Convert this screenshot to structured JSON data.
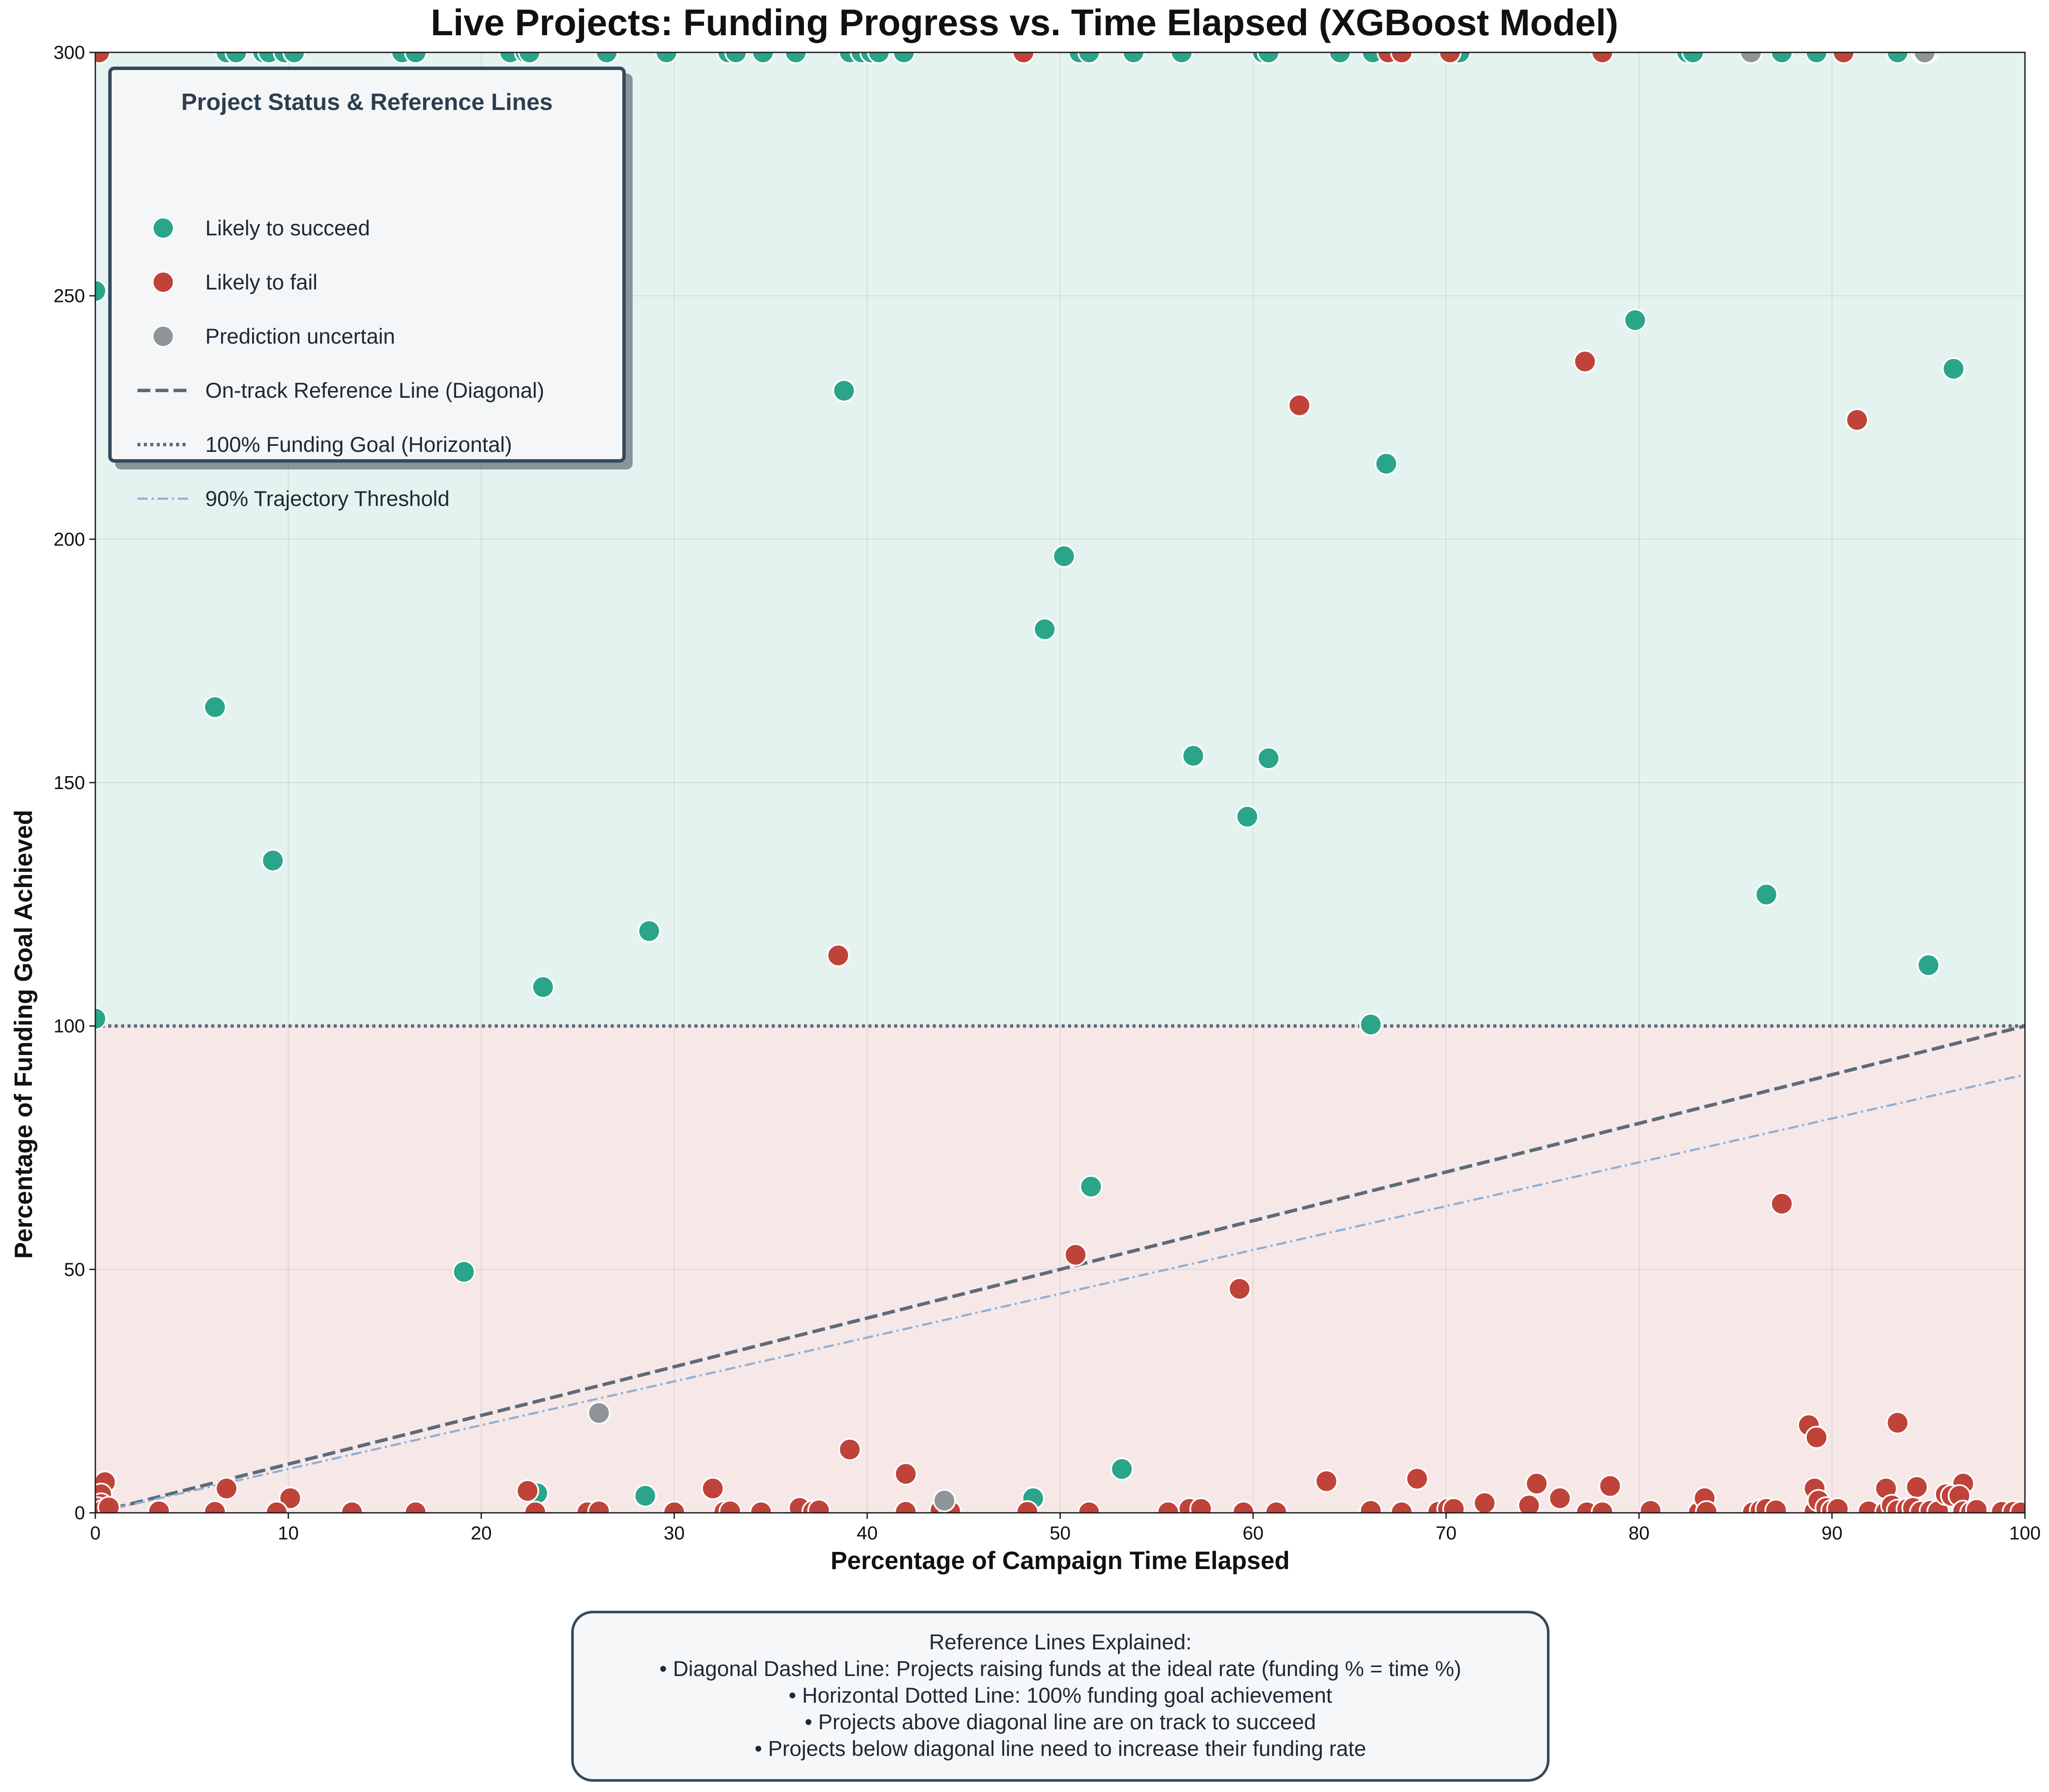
{
  "chart_data": {
    "type": "scatter",
    "title": "Live Projects: Funding Progress vs. Time Elapsed (XGBoost Model)",
    "xlabel": "Percentage of Campaign Time Elapsed",
    "ylabel": "Percentage of Funding Goal Achieved",
    "xlim": [
      0,
      100
    ],
    "ylim": [
      0,
      300
    ],
    "xticks": [
      "0",
      "10",
      "20",
      "30",
      "40",
      "50",
      "60",
      "70",
      "80",
      "90",
      "100"
    ],
    "yticks": [
      "0",
      "50",
      "100",
      "150",
      "200",
      "250",
      "300"
    ],
    "grid": true,
    "regions": [
      {
        "from": 100,
        "to": 300,
        "color": "#e5f3f0"
      },
      {
        "from": 0,
        "to": 100,
        "color": "#f6e8e7"
      }
    ],
    "reference_lines": [
      {
        "name": "On-track Reference Line (Diagonal)",
        "style": "dashed",
        "color": "#5d6b7a",
        "points": [
          [
            0,
            0
          ],
          [
            100,
            100
          ]
        ]
      },
      {
        "name": "100% Funding Goal (Horizontal)",
        "style": "dotted",
        "color": "#5d6b7a",
        "points": [
          [
            0,
            100
          ],
          [
            100,
            100
          ]
        ]
      },
      {
        "name": "90% Trajectory Threshold",
        "style": "dashdot",
        "color": "#8fb0d6",
        "points": [
          [
            0,
            0
          ],
          [
            100,
            90
          ]
        ]
      }
    ],
    "series": [
      {
        "name": "Likely to succeed",
        "color": "#2aa58a",
        "points": [
          [
            0,
            251
          ],
          [
            0,
            101.5
          ],
          [
            6.2,
            165.5
          ],
          [
            9.2,
            134
          ],
          [
            19.1,
            49.5
          ],
          [
            23.2,
            108
          ],
          [
            22.9,
            4
          ],
          [
            28.7,
            119.5
          ],
          [
            28.5,
            3.5
          ],
          [
            38.8,
            230.5
          ],
          [
            48.6,
            3
          ],
          [
            49.2,
            181.5
          ],
          [
            50.2,
            196.5
          ],
          [
            51.6,
            67
          ],
          [
            53.2,
            9
          ],
          [
            56.9,
            155.5
          ],
          [
            59.7,
            143
          ],
          [
            60.8,
            155
          ],
          [
            66.1,
            100.3
          ],
          [
            66.9,
            215.5
          ],
          [
            79.8,
            245
          ],
          [
            86.6,
            127
          ],
          [
            95,
            112.5
          ],
          [
            96.3,
            235
          ],
          [
            6.8,
            300
          ],
          [
            7.3,
            300
          ],
          [
            8.7,
            300
          ],
          [
            9,
            300
          ],
          [
            9.8,
            300
          ],
          [
            10.3,
            300
          ],
          [
            15.9,
            300
          ],
          [
            16.6,
            300
          ],
          [
            21.5,
            300
          ],
          [
            22.3,
            300
          ],
          [
            22.5,
            300
          ],
          [
            26.5,
            300
          ],
          [
            29.6,
            300
          ],
          [
            32.8,
            300
          ],
          [
            33.2,
            300
          ],
          [
            34.6,
            300
          ],
          [
            36.3,
            300
          ],
          [
            39.1,
            300
          ],
          [
            39.7,
            300
          ],
          [
            40.2,
            300
          ],
          [
            40.6,
            300
          ],
          [
            41.9,
            300
          ],
          [
            51,
            300
          ],
          [
            51.5,
            300
          ],
          [
            53.8,
            300
          ],
          [
            56.3,
            300
          ],
          [
            60.5,
            300
          ],
          [
            60.8,
            300
          ],
          [
            64.5,
            300
          ],
          [
            66.2,
            300
          ],
          [
            70.4,
            300
          ],
          [
            70.7,
            300
          ],
          [
            82.5,
            300
          ],
          [
            82.8,
            300
          ],
          [
            87.4,
            300
          ],
          [
            89.2,
            300
          ],
          [
            93.4,
            300
          ],
          [
            94.7,
            300
          ]
        ]
      },
      {
        "name": "Likely to fail",
        "color": "#c0433a",
        "points": [
          [
            0.2,
            300
          ],
          [
            48.1,
            300
          ],
          [
            67,
            300
          ],
          [
            67.7,
            300
          ],
          [
            70.2,
            300
          ],
          [
            78.1,
            300
          ],
          [
            90.6,
            300
          ],
          [
            94.9,
            300
          ],
          [
            62.4,
            227.5
          ],
          [
            77.2,
            236.5
          ],
          [
            91.3,
            224.5
          ],
          [
            38.5,
            114.5
          ],
          [
            87.4,
            63.5
          ],
          [
            50.8,
            53
          ],
          [
            59.3,
            46
          ],
          [
            39.1,
            13
          ],
          [
            42,
            8
          ],
          [
            63.8,
            6.5
          ],
          [
            68.5,
            7
          ],
          [
            74.7,
            6
          ],
          [
            78.5,
            5.5
          ],
          [
            88.8,
            18
          ],
          [
            89.2,
            15.5
          ],
          [
            93.4,
            18.5
          ],
          [
            92.8,
            5
          ],
          [
            94.4,
            5.3
          ],
          [
            96.8,
            6
          ],
          [
            89.1,
            5
          ],
          [
            32,
            5
          ],
          [
            6.8,
            5
          ],
          [
            0.5,
            6.3
          ],
          [
            0.3,
            3.8
          ],
          [
            0.3,
            1.8
          ],
          [
            0.1,
            1
          ],
          [
            0.4,
            0.5
          ],
          [
            0.7,
            1.1
          ],
          [
            22.4,
            4.5
          ],
          [
            10.1,
            3
          ],
          [
            3.3,
            0.3
          ],
          [
            6.2,
            0.2
          ],
          [
            9.4,
            0.1
          ],
          [
            13.3,
            0.1
          ],
          [
            16.6,
            0.1
          ],
          [
            22.8,
            0.1
          ],
          [
            25.5,
            0.1
          ],
          [
            26.1,
            0.3
          ],
          [
            30,
            0.1
          ],
          [
            32.6,
            0.2
          ],
          [
            32.9,
            0.3
          ],
          [
            34.5,
            0.1
          ],
          [
            36.5,
            1
          ],
          [
            37.2,
            0.3
          ],
          [
            37.5,
            0.5
          ],
          [
            42,
            0.2
          ],
          [
            43.8,
            0.5
          ],
          [
            44.3,
            0.3
          ],
          [
            48.3,
            0.2
          ],
          [
            51.5,
            0.1
          ],
          [
            55.6,
            0.1
          ],
          [
            56.7,
            0.8
          ],
          [
            57.3,
            0.8
          ],
          [
            59.5,
            0.1
          ],
          [
            61.2,
            0.1
          ],
          [
            66.1,
            0.4
          ],
          [
            67.7,
            0.1
          ],
          [
            69.6,
            0.2
          ],
          [
            70.1,
            0.8
          ],
          [
            70.4,
            0.8
          ],
          [
            72,
            2
          ],
          [
            74.3,
            1.5
          ],
          [
            75.9,
            3
          ],
          [
            77.3,
            0.1
          ],
          [
            78.1,
            0.1
          ],
          [
            80.6,
            0.4
          ],
          [
            83.1,
            0.1
          ],
          [
            83.4,
            3
          ],
          [
            83.5,
            0.2
          ],
          [
            85.9,
            0.1
          ],
          [
            86.3,
            0.5
          ],
          [
            86.6,
            0.8
          ],
          [
            87.1,
            0.5
          ],
          [
            89.1,
            0.3
          ],
          [
            89.3,
            2.5
          ],
          [
            89.7,
            1
          ],
          [
            90,
            0.5
          ],
          [
            90.3,
            0.8
          ],
          [
            91.9,
            0.3
          ],
          [
            92.8,
            0.2
          ],
          [
            93.1,
            1.5
          ],
          [
            93.4,
            0.5
          ],
          [
            93.9,
            0.8
          ],
          [
            94.2,
            1
          ],
          [
            94.6,
            0.2
          ],
          [
            95.1,
            0.4
          ],
          [
            95.5,
            0.3
          ],
          [
            95.9,
            3.8
          ],
          [
            96.2,
            3.5
          ],
          [
            96.6,
            3.5
          ],
          [
            96.8,
            0.3
          ],
          [
            97.2,
            0.1
          ],
          [
            97.5,
            0.6
          ],
          [
            98.8,
            0.2
          ],
          [
            99.4,
            0.2
          ],
          [
            99.8,
            0.1
          ]
        ]
      },
      {
        "name": "Prediction uncertain",
        "color": "#8d9597",
        "points": [
          [
            26.1,
            20.5
          ],
          [
            44,
            2.5
          ],
          [
            85.8,
            300
          ],
          [
            94.8,
            300
          ]
        ]
      }
    ]
  },
  "legend": {
    "title": "Project Status & Reference Lines",
    "items": [
      {
        "label": "Likely to succeed",
        "kind": "marker",
        "color": "#2aa58a"
      },
      {
        "label": "Likely to fail",
        "kind": "marker",
        "color": "#c0433a"
      },
      {
        "label": "Prediction uncertain",
        "kind": "marker",
        "color": "#8d9597"
      },
      {
        "label": "On-track Reference Line (Diagonal)",
        "kind": "dashed",
        "color": "#5d6b7a"
      },
      {
        "label": "100% Funding Goal (Horizontal)",
        "kind": "dotted",
        "color": "#5d6b7a"
      },
      {
        "label": "90% Trajectory Threshold",
        "kind": "dashdot",
        "color": "#8fb0d6"
      }
    ]
  },
  "explanation": {
    "heading": "Reference Lines Explained:",
    "lines": [
      "• Diagonal Dashed Line: Projects raising funds at the ideal rate (funding % = time %)",
      "• Horizontal Dotted Line: 100% funding goal achievement",
      "• Projects above diagonal line are on track to succeed",
      "• Projects below diagonal line need to increase their funding rate"
    ]
  }
}
